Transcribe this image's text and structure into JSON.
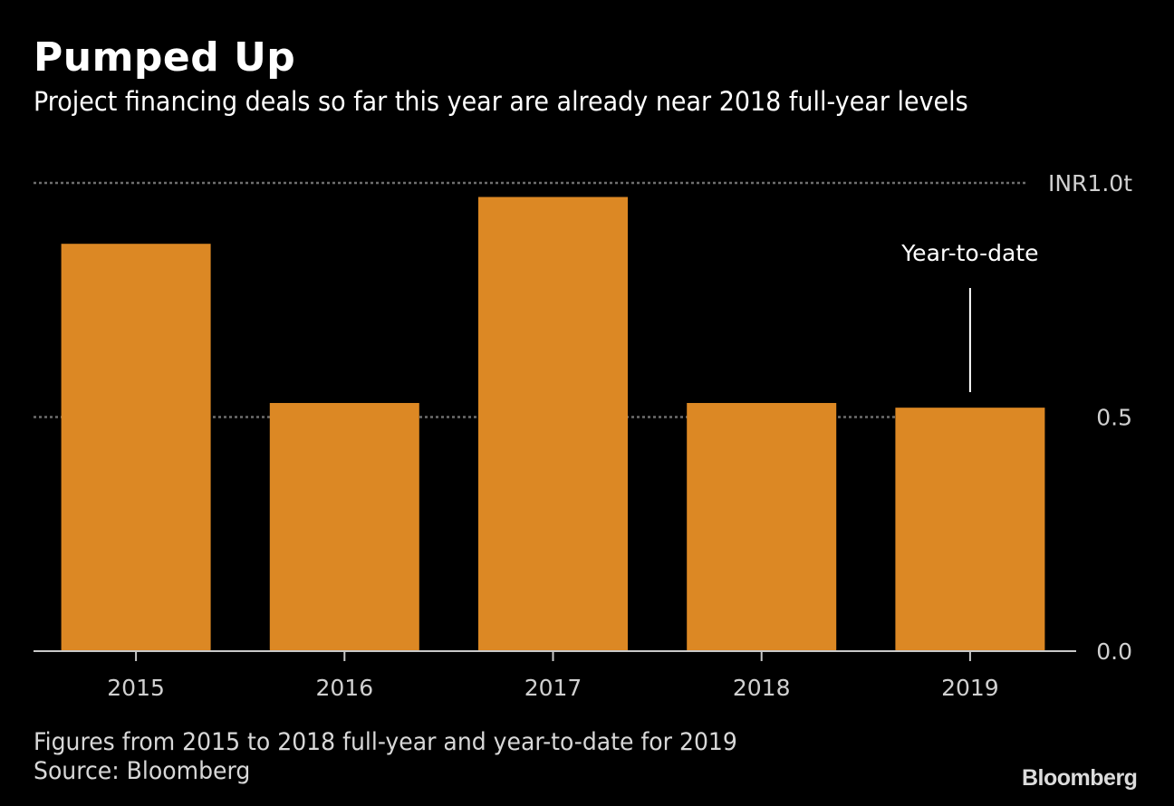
{
  "header": {
    "title": "Pumped Up",
    "subtitle": "Project financing deals so far this year are already near 2018 full-year levels"
  },
  "footer": {
    "note": "Figures from 2015 to 2018 full-year and year-to-date for 2019",
    "source": "Source: Bloomberg",
    "logo": "Bloomberg"
  },
  "chart_data": {
    "type": "bar",
    "title": "Pumped Up",
    "subtitle": "Project financing deals so far this year are already near 2018 full-year levels",
    "categories": [
      "2015",
      "2016",
      "2017",
      "2018",
      "2019"
    ],
    "values": [
      0.87,
      0.53,
      0.97,
      0.53,
      0.52
    ],
    "unit": "INR trillion",
    "xlabel": "",
    "ylabel": "",
    "ylim": [
      0,
      1.0
    ],
    "yticks": [
      {
        "value": 0.0,
        "label": "0.0"
      },
      {
        "value": 0.5,
        "label": "0.5"
      },
      {
        "value": 1.0,
        "label": "INR1.0t"
      }
    ],
    "grid": true,
    "y_axis_side": "right",
    "bar_color": "#DC8824",
    "annotations": [
      {
        "category": "2019",
        "text": "Year-to-date"
      }
    ],
    "legend": "none"
  }
}
